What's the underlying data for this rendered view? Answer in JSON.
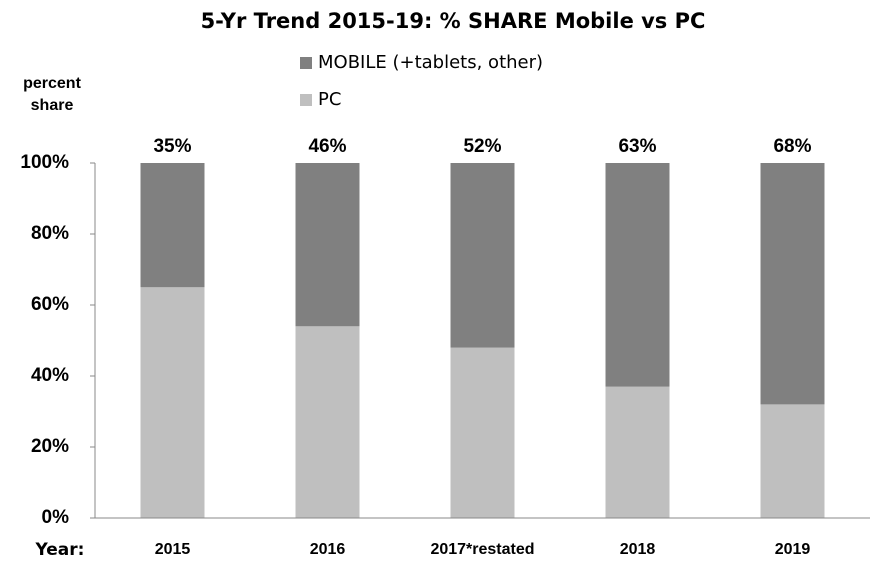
{
  "chart_data": {
    "type": "stacked_bar",
    "title": "5-Yr Trend 2015-19: % SHARE Mobile vs PC",
    "y_label": [
      "percent",
      "share"
    ],
    "x_label": "Year:",
    "categories": [
      "2015",
      "2016",
      "2017*restated",
      "2018",
      "2019"
    ],
    "series": [
      {
        "name": "PC",
        "color": "#bfbfbf",
        "values": [
          65,
          54,
          48,
          37,
          32
        ]
      },
      {
        "name": "MOBILE (+tablets, other)",
        "color": "#808080",
        "values": [
          35,
          46,
          52,
          63,
          68
        ],
        "value_labels": [
          "35%",
          "46%",
          "52%",
          "63%",
          "68%"
        ]
      }
    ],
    "legend_order": [
      1,
      0
    ],
    "ylim": [
      0,
      100
    ],
    "yticks": [
      {
        "value": 0,
        "label": "0%"
      },
      {
        "value": 20,
        "label": "20%"
      },
      {
        "value": 40,
        "label": "40%"
      },
      {
        "value": 60,
        "label": "60%"
      },
      {
        "value": 80,
        "label": "80%"
      },
      {
        "value": 100,
        "label": "100%"
      }
    ],
    "grid": false
  }
}
